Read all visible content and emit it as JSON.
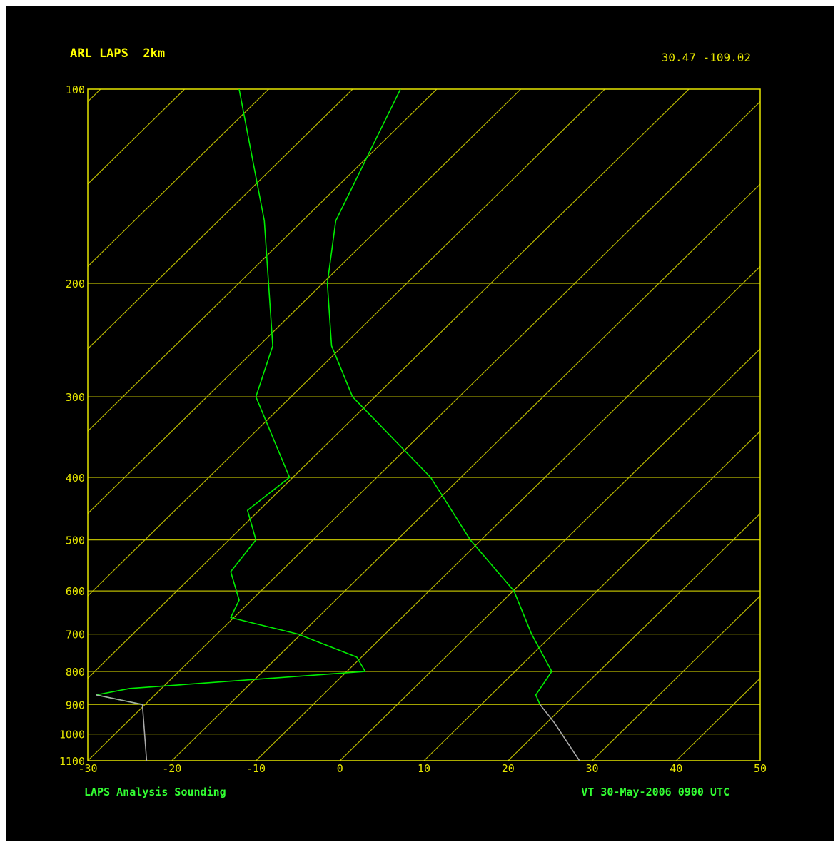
{
  "chart_data": {
    "type": "line",
    "subtype": "skew-t log-p sounding",
    "title": "ARL LAPS  2km",
    "location": "30.47 -109.02",
    "footer_left": "LAPS Analysis Sounding",
    "footer_right": "VT 30-May-2006 0900 UTC",
    "xlabel": "",
    "ylabel": "",
    "x_ticks": [
      -30,
      -20,
      -10,
      0,
      10,
      20,
      30,
      40,
      50
    ],
    "y_ticks": [
      100,
      200,
      300,
      400,
      500,
      600,
      700,
      800,
      900,
      1000,
      1100
    ],
    "xlim": [
      -30,
      50
    ],
    "ylim_hPa": [
      1100,
      100
    ],
    "y_scale": "log",
    "skew_isotherms": [
      -110,
      -100,
      -90,
      -80,
      -70,
      -60,
      -50,
      -40,
      -30,
      -20,
      -10,
      0,
      10,
      20,
      30,
      40
    ],
    "grid": true,
    "series": [
      {
        "role": "temperature",
        "color": "#00ee00",
        "points": [
          {
            "p": 100,
            "x": 7.2
          },
          {
            "p": 160,
            "x": -0.5
          },
          {
            "p": 200,
            "x": -1.5
          },
          {
            "p": 250,
            "x": -1.0
          },
          {
            "p": 300,
            "x": 1.5
          },
          {
            "p": 400,
            "x": 10.8
          },
          {
            "p": 500,
            "x": 15.5
          },
          {
            "p": 600,
            "x": 20.7
          },
          {
            "p": 700,
            "x": 22.8
          },
          {
            "p": 800,
            "x": 25.2
          },
          {
            "p": 870,
            "x": 23.3
          },
          {
            "p": 900,
            "x": 23.8
          }
        ]
      },
      {
        "role": "temperature-surface",
        "color": "#aaaaaa",
        "points": [
          {
            "p": 900,
            "x": 23.8
          },
          {
            "p": 960,
            "x": 25.5
          },
          {
            "p": 1100,
            "x": 28.5
          }
        ]
      },
      {
        "role": "dewpoint",
        "color": "#00ee00",
        "points": [
          {
            "p": 100,
            "x": -12.0
          },
          {
            "p": 160,
            "x": -9.0
          },
          {
            "p": 200,
            "x": -8.5
          },
          {
            "p": 250,
            "x": -8.0
          },
          {
            "p": 300,
            "x": -10.0
          },
          {
            "p": 400,
            "x": -6.0
          },
          {
            "p": 450,
            "x": -11.0
          },
          {
            "p": 500,
            "x": -10.0
          },
          {
            "p": 560,
            "x": -13.0
          },
          {
            "p": 620,
            "x": -12.0
          },
          {
            "p": 660,
            "x": -13.0
          },
          {
            "p": 700,
            "x": -5.0
          },
          {
            "p": 760,
            "x": 2.0
          },
          {
            "p": 800,
            "x": 3.0
          },
          {
            "p": 850,
            "x": -25.0
          },
          {
            "p": 870,
            "x": -29.0
          },
          {
            "p": 900,
            "x": -23.5
          }
        ]
      },
      {
        "role": "dewpoint-surface",
        "color": "#aaaaaa",
        "points": [
          {
            "p": 870,
            "x": -29.0
          },
          {
            "p": 900,
            "x": -23.5
          },
          {
            "p": 1100,
            "x": -23.0
          }
        ]
      }
    ]
  },
  "colors": {
    "background": "#000000",
    "frame": "#e6e600",
    "grid": "#b9b900",
    "title": "#ffff00",
    "footer": "#33ff33"
  }
}
